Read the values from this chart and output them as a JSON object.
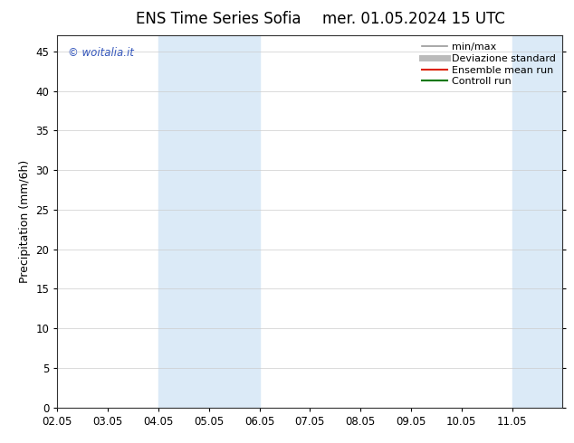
{
  "title_left": "ENS Time Series Sofia",
  "title_right": "mer. 01.05.2024 15 UTC",
  "ylabel": "Precipitation (mm/6h)",
  "ylim": [
    0,
    47
  ],
  "yticks": [
    0,
    5,
    10,
    15,
    20,
    25,
    30,
    35,
    40,
    45
  ],
  "xlim_start": 0.0,
  "xlim_end": 10.0,
  "xtick_positions": [
    0,
    1,
    2,
    3,
    4,
    5,
    6,
    7,
    8,
    9
  ],
  "xtick_labels": [
    "02.05",
    "03.05",
    "04.05",
    "05.05",
    "06.05",
    "07.05",
    "08.05",
    "09.05",
    "10.05",
    "11.05"
  ],
  "shade_bands": [
    {
      "xmin": 2.0,
      "xmax": 4.0
    },
    {
      "xmin": 9.0,
      "xmax": 10.0
    }
  ],
  "shade_color": "#dbeaf7",
  "watermark": "© woitalia.it",
  "watermark_color": "#3355bb",
  "legend_entries": [
    {
      "label": "min/max",
      "color": "#999999",
      "lw": 1.2,
      "ls": "-"
    },
    {
      "label": "Deviazione standard",
      "color": "#bbbbbb",
      "lw": 5,
      "ls": "-"
    },
    {
      "label": "Ensemble mean run",
      "color": "#dd2200",
      "lw": 1.5,
      "ls": "-"
    },
    {
      "label": "Controll run",
      "color": "#007700",
      "lw": 1.5,
      "ls": "-"
    }
  ],
  "bg_color": "#ffffff",
  "grid_color": "#cccccc",
  "title_fontsize": 12,
  "ylabel_fontsize": 9,
  "tick_fontsize": 8.5,
  "legend_fontsize": 8
}
